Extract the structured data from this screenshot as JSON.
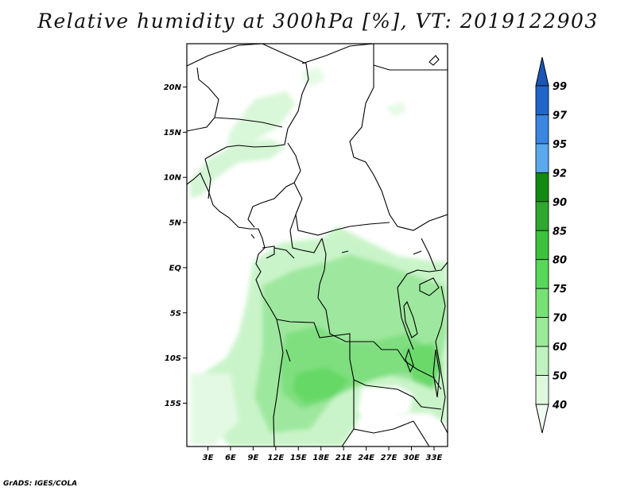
{
  "title": "Relative humidity at 300hPa [%], VT: 2019122903",
  "credit": "GrADS: IGES/COLA",
  "map": {
    "lon_labels": [
      "3E",
      "6E",
      "9E",
      "12E",
      "15E",
      "18E",
      "21E",
      "24E",
      "27E",
      "30E",
      "33E"
    ],
    "lon_values": [
      3,
      6,
      9,
      12,
      15,
      18,
      21,
      24,
      27,
      30,
      33
    ],
    "lat_labels": [
      "20N",
      "15N",
      "10N",
      "5N",
      "EQ",
      "5S",
      "10S",
      "15S"
    ],
    "lat_values": [
      20,
      15,
      10,
      5,
      0,
      -5,
      -10,
      -15
    ],
    "lon_range": [
      0.2,
      34.8
    ],
    "lat_range": [
      -19.8,
      24.8
    ]
  },
  "colorbar": {
    "levels": [
      "99",
      "97",
      "95",
      "92",
      "90",
      "85",
      "80",
      "75",
      "70",
      "60",
      "50",
      "40"
    ],
    "colors": [
      "#2166c8",
      "#3a86e0",
      "#5aa8ee",
      "#128a12",
      "#2ea82e",
      "#3cc23c",
      "#58d858",
      "#76e276",
      "#9aea9a",
      "#bff2bf",
      "#ddf8dd",
      "#f2fdf2"
    ],
    "top_arrow_color": "#1a56b8"
  }
}
